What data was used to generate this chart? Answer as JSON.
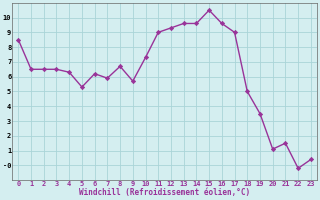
{
  "x": [
    0,
    1,
    2,
    3,
    4,
    5,
    6,
    7,
    8,
    9,
    10,
    11,
    12,
    13,
    14,
    15,
    16,
    17,
    18,
    19,
    20,
    21,
    22,
    23
  ],
  "y": [
    8.5,
    6.5,
    6.5,
    6.5,
    6.3,
    5.3,
    6.2,
    5.9,
    6.7,
    5.7,
    7.3,
    9.0,
    9.3,
    9.6,
    9.6,
    10.5,
    9.6,
    9.0,
    5.0,
    3.5,
    1.1,
    1.5,
    -0.2,
    0.4
  ],
  "xlabel": "Windchill (Refroidissement éolien,°C)",
  "xlim_min": -0.5,
  "xlim_max": 23.5,
  "ylim_min": -1.0,
  "ylim_max": 11.0,
  "yticks": [
    0,
    1,
    2,
    3,
    4,
    5,
    6,
    7,
    8,
    9,
    10
  ],
  "ytick_labels": [
    "-0",
    "1",
    "2",
    "3",
    "4",
    "5",
    "6",
    "7",
    "8",
    "9",
    "10"
  ],
  "line_color": "#993399",
  "marker_color": "#993399",
  "bg_color": "#d4eef0",
  "grid_color": "#aad4d8",
  "xlabel_color": "#993399",
  "tick_color": "#993399",
  "tick_fontsize": 5.0,
  "xlabel_fontsize": 5.5,
  "linewidth": 1.0,
  "markersize": 2.2
}
